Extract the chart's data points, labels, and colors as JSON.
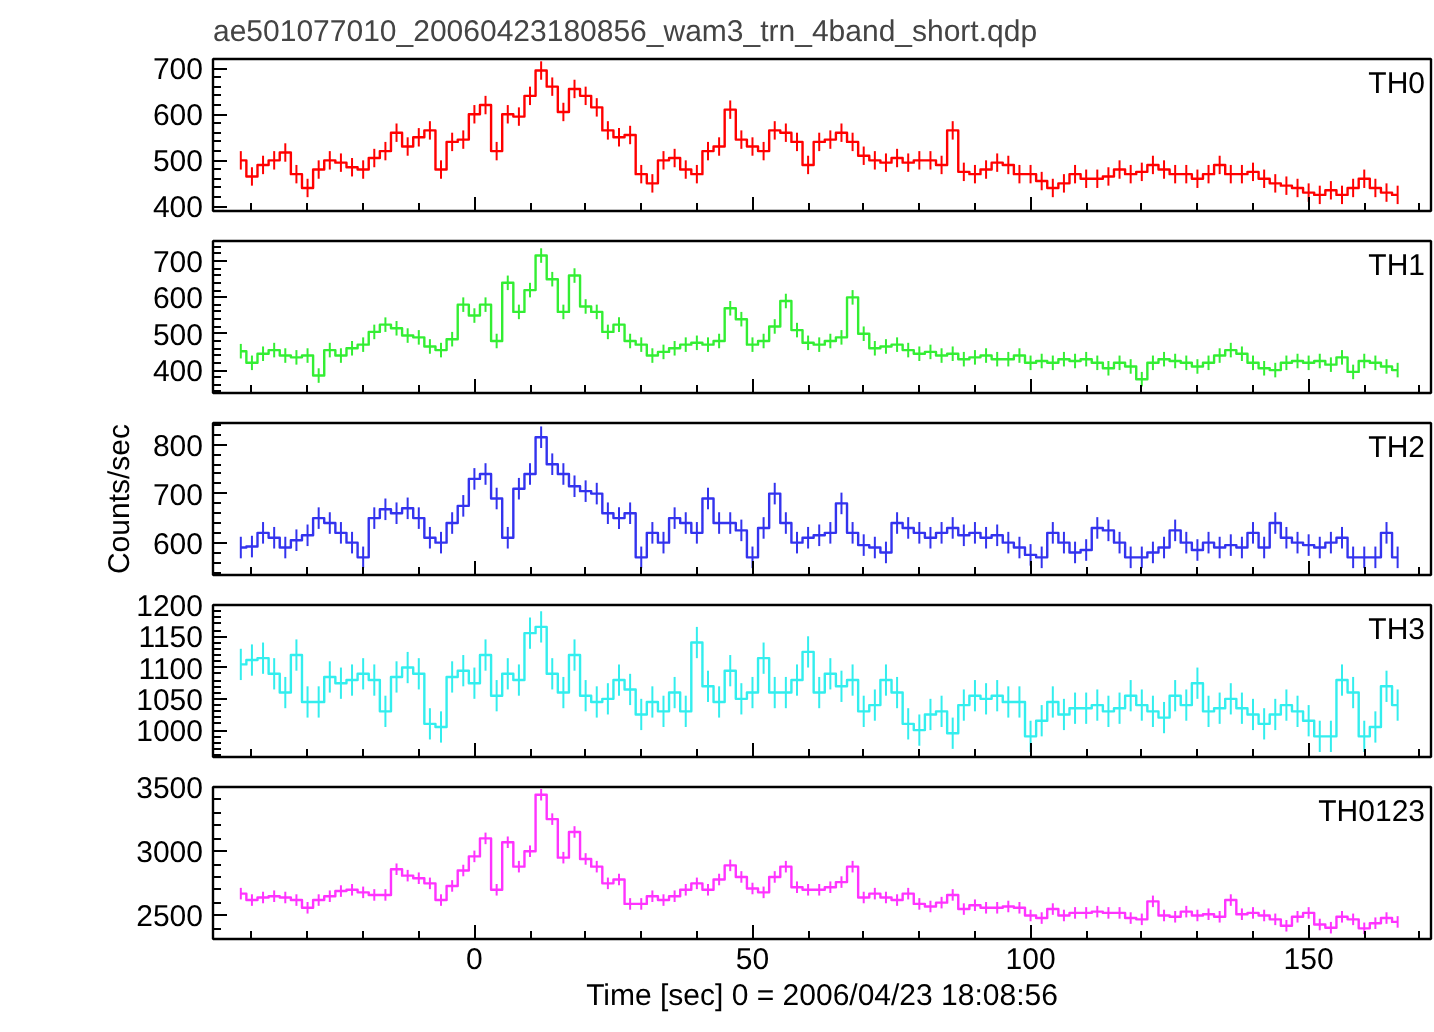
{
  "chart_data": [
    {
      "type": "step",
      "title": "ae501077010_20060423180856_wam3_trn_4band_short.qdp",
      "annotations": [
        "TH0"
      ],
      "color": "#ff0000",
      "xlim": [
        -47,
        172
      ],
      "xticks": [
        0,
        50,
        100,
        150
      ],
      "ylim": [
        390,
        720
      ],
      "yticks": [
        400,
        500,
        600,
        700
      ],
      "tick_labels": "y",
      "x": [
        -42,
        -40,
        -38,
        -36,
        -34,
        -32,
        -30,
        -28,
        -26,
        -24,
        -22,
        -20,
        -18,
        -16,
        -14,
        -12,
        -10,
        -8,
        -6,
        -4,
        -2,
        0,
        2,
        4,
        6,
        8,
        10,
        12,
        14,
        16,
        18,
        20,
        22,
        24,
        26,
        28,
        30,
        32,
        34,
        36,
        38,
        40,
        42,
        44,
        46,
        48,
        50,
        52,
        54,
        56,
        58,
        60,
        62,
        64,
        66,
        68,
        70,
        72,
        74,
        76,
        78,
        80,
        82,
        84,
        86,
        88,
        90,
        92,
        94,
        96,
        98,
        100,
        102,
        104,
        106,
        108,
        110,
        112,
        114,
        116,
        118,
        120,
        122,
        124,
        126,
        128,
        130,
        132,
        134,
        136,
        138,
        140,
        142,
        144,
        146,
        148,
        150,
        152,
        154,
        156,
        158,
        160,
        162,
        164,
        166
      ],
      "values": [
        500,
        465,
        490,
        500,
        517,
        470,
        440,
        480,
        500,
        495,
        485,
        480,
        505,
        520,
        560,
        530,
        550,
        565,
        480,
        540,
        545,
        600,
        620,
        520,
        600,
        595,
        640,
        695,
        660,
        605,
        655,
        640,
        615,
        565,
        550,
        555,
        470,
        450,
        500,
        505,
        480,
        470,
        520,
        530,
        610,
        545,
        530,
        520,
        565,
        560,
        540,
        490,
        540,
        545,
        560,
        540,
        510,
        500,
        495,
        505,
        495,
        500,
        500,
        490,
        565,
        475,
        470,
        480,
        495,
        490,
        470,
        470,
        455,
        440,
        450,
        470,
        460,
        460,
        465,
        480,
        470,
        475,
        490,
        480,
        470,
        470,
        460,
        470,
        490,
        470,
        470,
        475,
        460,
        450,
        445,
        440,
        430,
        425,
        435,
        425,
        440,
        460,
        440,
        430,
        425
      ],
      "errors": [
        20,
        20,
        20,
        20,
        20,
        20,
        20,
        20,
        20,
        20,
        20,
        20,
        20,
        20,
        20,
        20,
        20,
        20,
        20,
        20,
        20,
        20,
        20,
        20,
        20,
        20,
        20,
        20,
        20,
        20,
        20,
        20,
        20,
        20,
        20,
        20,
        20,
        20,
        20,
        20,
        20,
        20,
        20,
        20,
        20,
        20,
        20,
        20,
        20,
        20,
        20,
        20,
        20,
        20,
        20,
        20,
        20,
        20,
        20,
        20,
        20,
        20,
        20,
        20,
        20,
        20,
        20,
        20,
        20,
        20,
        20,
        20,
        20,
        20,
        20,
        20,
        20,
        20,
        20,
        20,
        20,
        20,
        20,
        20,
        20,
        20,
        20,
        20,
        20,
        20,
        20,
        20,
        20,
        20,
        20,
        20,
        20,
        20,
        20,
        20,
        20,
        20,
        20,
        20,
        20
      ]
    },
    {
      "type": "step",
      "annotations": [
        "TH1"
      ],
      "color": "#33ee33",
      "xlim": [
        -47,
        172
      ],
      "xticks": [
        0,
        50,
        100,
        150
      ],
      "ylim": [
        337,
        755
      ],
      "yticks": [
        400,
        500,
        600,
        700
      ],
      "tick_labels": "y",
      "x": [
        -42,
        -40,
        -38,
        -36,
        -34,
        -32,
        -30,
        -28,
        -26,
        -24,
        -22,
        -20,
        -18,
        -16,
        -14,
        -12,
        -10,
        -8,
        -6,
        -4,
        -2,
        0,
        2,
        4,
        6,
        8,
        10,
        12,
        14,
        16,
        18,
        20,
        22,
        24,
        26,
        28,
        30,
        32,
        34,
        36,
        38,
        40,
        42,
        44,
        46,
        48,
        50,
        52,
        54,
        56,
        58,
        60,
        62,
        64,
        66,
        68,
        70,
        72,
        74,
        76,
        78,
        80,
        82,
        84,
        86,
        88,
        90,
        92,
        94,
        96,
        98,
        100,
        102,
        104,
        106,
        108,
        110,
        112,
        114,
        116,
        118,
        120,
        122,
        124,
        126,
        128,
        130,
        132,
        134,
        136,
        138,
        140,
        142,
        144,
        146,
        148,
        150,
        152,
        154,
        156,
        158,
        160,
        162,
        164,
        166
      ],
      "values": [
        452,
        420,
        445,
        455,
        440,
        435,
        440,
        385,
        455,
        440,
        460,
        470,
        505,
        525,
        515,
        495,
        490,
        465,
        455,
        485,
        580,
        550,
        580,
        480,
        640,
        560,
        620,
        715,
        650,
        560,
        660,
        575,
        560,
        505,
        525,
        480,
        470,
        440,
        450,
        460,
        470,
        475,
        470,
        480,
        570,
        540,
        470,
        480,
        520,
        590,
        510,
        475,
        470,
        480,
        490,
        600,
        500,
        460,
        465,
        470,
        455,
        445,
        450,
        440,
        445,
        430,
        435,
        440,
        430,
        430,
        440,
        420,
        425,
        420,
        430,
        425,
        430,
        420,
        405,
        420,
        410,
        375,
        420,
        430,
        425,
        420,
        410,
        420,
        440,
        455,
        445,
        420,
        405,
        400,
        420,
        425,
        420,
        425,
        415,
        435,
        395,
        425,
        420,
        410,
        400
      ],
      "errors": [
        20,
        20,
        20,
        20,
        20,
        20,
        20,
        20,
        20,
        20,
        20,
        20,
        20,
        20,
        20,
        20,
        20,
        20,
        20,
        20,
        20,
        20,
        20,
        20,
        20,
        20,
        20,
        20,
        20,
        20,
        20,
        20,
        20,
        20,
        20,
        20,
        20,
        20,
        20,
        20,
        20,
        20,
        20,
        20,
        20,
        20,
        20,
        20,
        20,
        20,
        20,
        20,
        20,
        20,
        20,
        20,
        20,
        20,
        20,
        20,
        20,
        20,
        20,
        20,
        20,
        20,
        20,
        20,
        20,
        20,
        20,
        20,
        20,
        20,
        20,
        20,
        20,
        20,
        20,
        20,
        20,
        20,
        20,
        20,
        20,
        20,
        20,
        20,
        20,
        20,
        20,
        20,
        20,
        20,
        20,
        20,
        20,
        20,
        20,
        20,
        20,
        20,
        20,
        20,
        20
      ]
    },
    {
      "type": "step",
      "annotations": [
        "TH2"
      ],
      "ylabel": "Counts/sec",
      "color": "#3333ee",
      "xlim": [
        -47,
        172
      ],
      "xticks": [
        0,
        50,
        100,
        150
      ],
      "ylim": [
        534,
        844
      ],
      "yticks": [
        600,
        700,
        800
      ],
      "tick_labels": "y",
      "x": [
        -42,
        -40,
        -38,
        -36,
        -34,
        -32,
        -30,
        -28,
        -26,
        -24,
        -22,
        -20,
        -18,
        -16,
        -14,
        -12,
        -10,
        -8,
        -6,
        -4,
        -2,
        0,
        2,
        4,
        6,
        8,
        10,
        12,
        14,
        16,
        18,
        20,
        22,
        24,
        26,
        28,
        30,
        32,
        34,
        36,
        38,
        40,
        42,
        44,
        46,
        48,
        50,
        52,
        54,
        56,
        58,
        60,
        62,
        64,
        66,
        68,
        70,
        72,
        74,
        76,
        78,
        80,
        82,
        84,
        86,
        88,
        90,
        92,
        94,
        96,
        98,
        100,
        102,
        104,
        106,
        108,
        110,
        112,
        114,
        116,
        118,
        120,
        122,
        124,
        126,
        128,
        130,
        132,
        134,
        136,
        138,
        140,
        142,
        144,
        146,
        148,
        150,
        152,
        154,
        156,
        158,
        160,
        162,
        164,
        166
      ],
      "values": [
        590,
        592,
        620,
        610,
        590,
        605,
        615,
        650,
        640,
        620,
        600,
        570,
        650,
        668,
        660,
        670,
        650,
        610,
        600,
        640,
        675,
        730,
        740,
        690,
        610,
        710,
        740,
        815,
        760,
        740,
        715,
        705,
        700,
        660,
        650,
        660,
        570,
        620,
        600,
        650,
        640,
        620,
        690,
        640,
        640,
        625,
        570,
        630,
        700,
        640,
        600,
        610,
        615,
        620,
        680,
        620,
        595,
        590,
        580,
        640,
        630,
        620,
        610,
        620,
        630,
        615,
        620,
        610,
        615,
        600,
        590,
        575,
        570,
        620,
        600,
        580,
        585,
        630,
        625,
        600,
        570,
        570,
        580,
        590,
        625,
        600,
        585,
        600,
        590,
        595,
        590,
        620,
        590,
        640,
        610,
        600,
        595,
        590,
        600,
        610,
        570,
        570,
        570,
        620,
        570
      ],
      "errors": [
        22,
        22,
        22,
        22,
        22,
        22,
        22,
        22,
        22,
        22,
        22,
        22,
        22,
        22,
        22,
        22,
        22,
        22,
        22,
        22,
        22,
        22,
        22,
        22,
        22,
        22,
        22,
        22,
        22,
        22,
        22,
        22,
        22,
        22,
        22,
        22,
        22,
        22,
        22,
        22,
        22,
        22,
        22,
        22,
        22,
        22,
        22,
        22,
        22,
        22,
        22,
        22,
        22,
        22,
        22,
        22,
        22,
        22,
        22,
        22,
        22,
        22,
        22,
        22,
        22,
        22,
        22,
        22,
        22,
        22,
        22,
        22,
        22,
        22,
        22,
        22,
        22,
        22,
        22,
        22,
        22,
        22,
        22,
        22,
        22,
        22,
        22,
        22,
        22,
        22,
        22,
        22,
        22,
        22,
        22,
        22,
        22,
        22,
        22,
        22,
        22,
        22,
        22,
        22,
        22
      ]
    },
    {
      "type": "step",
      "annotations": [
        "TH3"
      ],
      "color": "#33eeee",
      "xlim": [
        -47,
        172
      ],
      "xticks": [
        0,
        50,
        100,
        150
      ],
      "ylim": [
        957,
        1200
      ],
      "yticks": [
        1000,
        1050,
        1100,
        1150,
        1200
      ],
      "tick_labels": "y",
      "x": [
        -42,
        -40,
        -38,
        -36,
        -34,
        -32,
        -30,
        -28,
        -26,
        -24,
        -22,
        -20,
        -18,
        -16,
        -14,
        -12,
        -10,
        -8,
        -6,
        -4,
        -2,
        0,
        2,
        4,
        6,
        8,
        10,
        12,
        14,
        16,
        18,
        20,
        22,
        24,
        26,
        28,
        30,
        32,
        34,
        36,
        38,
        40,
        42,
        44,
        46,
        48,
        50,
        52,
        54,
        56,
        58,
        60,
        62,
        64,
        66,
        68,
        70,
        72,
        74,
        76,
        78,
        80,
        82,
        84,
        86,
        88,
        90,
        92,
        94,
        96,
        98,
        100,
        102,
        104,
        106,
        108,
        110,
        112,
        114,
        116,
        118,
        120,
        122,
        124,
        126,
        128,
        130,
        132,
        134,
        136,
        138,
        140,
        142,
        144,
        146,
        148,
        150,
        152,
        154,
        156,
        158,
        160,
        162,
        164,
        166
      ],
      "values": [
        1105,
        1112,
        1115,
        1090,
        1060,
        1120,
        1045,
        1045,
        1085,
        1075,
        1080,
        1090,
        1080,
        1030,
        1085,
        1100,
        1090,
        1010,
        1005,
        1085,
        1095,
        1075,
        1120,
        1055,
        1090,
        1080,
        1155,
        1165,
        1090,
        1060,
        1120,
        1055,
        1045,
        1050,
        1080,
        1065,
        1025,
        1045,
        1030,
        1060,
        1030,
        1140,
        1070,
        1045,
        1095,
        1050,
        1060,
        1115,
        1060,
        1060,
        1080,
        1125,
        1060,
        1090,
        1070,
        1080,
        1030,
        1040,
        1080,
        1060,
        1010,
        1000,
        1025,
        1030,
        995,
        1040,
        1055,
        1050,
        1055,
        1045,
        1045,
        990,
        1015,
        1045,
        1025,
        1035,
        1035,
        1040,
        1030,
        1035,
        1055,
        1040,
        1030,
        1020,
        1055,
        1040,
        1075,
        1030,
        1035,
        1050,
        1035,
        1025,
        1010,
        1025,
        1040,
        1030,
        1015,
        990,
        990,
        1080,
        1060,
        990,
        1005,
        1070,
        1040
      ],
      "errors": [
        25,
        25,
        25,
        25,
        25,
        25,
        25,
        25,
        25,
        25,
        25,
        25,
        25,
        25,
        25,
        25,
        25,
        25,
        25,
        25,
        25,
        25,
        25,
        25,
        25,
        25,
        25,
        25,
        25,
        25,
        25,
        25,
        25,
        25,
        25,
        25,
        25,
        25,
        25,
        25,
        25,
        25,
        25,
        25,
        25,
        25,
        25,
        25,
        25,
        25,
        25,
        25,
        25,
        25,
        25,
        25,
        25,
        25,
        25,
        25,
        25,
        25,
        25,
        25,
        25,
        25,
        25,
        25,
        25,
        25,
        25,
        25,
        25,
        25,
        25,
        25,
        25,
        25,
        25,
        25,
        25,
        25,
        25,
        25,
        25,
        25,
        25,
        25,
        25,
        25,
        25,
        25,
        25,
        25,
        25,
        25,
        25,
        25,
        25,
        25,
        25,
        25,
        25,
        25,
        25
      ]
    },
    {
      "type": "step",
      "annotations": [
        "TH0123"
      ],
      "xlabel": "Time [sec] 0 = 2006/04/23 18:08:56",
      "color": "#ff33ff",
      "xlim": [
        -47,
        172
      ],
      "xticks": [
        0,
        50,
        100,
        150
      ],
      "ylim": [
        2317,
        3500
      ],
      "yticks": [
        2500,
        3000,
        3500
      ],
      "x": [
        -42,
        -40,
        -38,
        -36,
        -34,
        -32,
        -30,
        -28,
        -26,
        -24,
        -22,
        -20,
        -18,
        -16,
        -14,
        -12,
        -10,
        -8,
        -6,
        -4,
        -2,
        0,
        2,
        4,
        6,
        8,
        10,
        12,
        14,
        16,
        18,
        20,
        22,
        24,
        26,
        28,
        30,
        32,
        34,
        36,
        38,
        40,
        42,
        44,
        46,
        48,
        50,
        52,
        54,
        56,
        58,
        60,
        62,
        64,
        66,
        68,
        70,
        72,
        74,
        76,
        78,
        80,
        82,
        84,
        86,
        88,
        90,
        92,
        94,
        96,
        98,
        100,
        102,
        104,
        106,
        108,
        110,
        112,
        114,
        116,
        118,
        120,
        122,
        124,
        126,
        128,
        130,
        132,
        134,
        136,
        138,
        140,
        142,
        144,
        146,
        148,
        150,
        152,
        154,
        156,
        158,
        160,
        162,
        164,
        166
      ],
      "values": [
        2670,
        2620,
        2640,
        2650,
        2640,
        2620,
        2560,
        2620,
        2650,
        2690,
        2700,
        2680,
        2660,
        2660,
        2860,
        2810,
        2790,
        2750,
        2620,
        2730,
        2850,
        2960,
        3100,
        2700,
        3070,
        2880,
        3000,
        3440,
        3250,
        2950,
        3150,
        2940,
        2880,
        2750,
        2780,
        2590,
        2590,
        2650,
        2620,
        2650,
        2700,
        2750,
        2700,
        2780,
        2890,
        2800,
        2710,
        2680,
        2800,
        2880,
        2720,
        2700,
        2700,
        2720,
        2760,
        2880,
        2640,
        2670,
        2640,
        2620,
        2670,
        2590,
        2570,
        2600,
        2660,
        2550,
        2580,
        2560,
        2560,
        2570,
        2560,
        2500,
        2480,
        2550,
        2500,
        2520,
        2520,
        2530,
        2520,
        2520,
        2480,
        2470,
        2610,
        2500,
        2490,
        2530,
        2500,
        2510,
        2490,
        2620,
        2510,
        2520,
        2500,
        2470,
        2420,
        2490,
        2520,
        2430,
        2405,
        2490,
        2470,
        2400,
        2440,
        2480,
        2450
      ],
      "errors": [
        45,
        45,
        45,
        45,
        45,
        45,
        45,
        45,
        45,
        45,
        45,
        45,
        45,
        45,
        45,
        45,
        45,
        45,
        45,
        45,
        45,
        45,
        45,
        45,
        45,
        45,
        45,
        45,
        45,
        45,
        45,
        45,
        45,
        45,
        45,
        45,
        45,
        45,
        45,
        45,
        45,
        45,
        45,
        45,
        45,
        45,
        45,
        45,
        45,
        45,
        45,
        45,
        45,
        45,
        45,
        45,
        45,
        45,
        45,
        45,
        45,
        45,
        45,
        45,
        45,
        45,
        45,
        45,
        45,
        45,
        45,
        45,
        45,
        45,
        45,
        45,
        45,
        45,
        45,
        45,
        45,
        45,
        45,
        45,
        45,
        45,
        45,
        45,
        45,
        45,
        45,
        45,
        45,
        45,
        45,
        45,
        45,
        45,
        45,
        45,
        45,
        45,
        45,
        45,
        45
      ]
    }
  ]
}
